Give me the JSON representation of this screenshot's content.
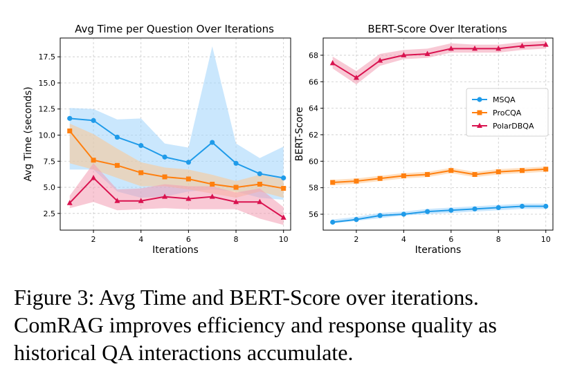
{
  "chart_data": [
    {
      "type": "line",
      "title": "Avg Time per Question Over Iterations",
      "xlabel": "Iterations",
      "ylabel": "Avg Time (seconds)",
      "xlim": [
        0.6,
        10.3
      ],
      "ylim": [
        0.9,
        19.3
      ],
      "xticks": [
        2,
        4,
        6,
        8,
        10
      ],
      "yticks": [
        2.5,
        5.0,
        7.5,
        10.0,
        12.5,
        15.0,
        17.5
      ],
      "x": [
        1,
        2,
        3,
        4,
        5,
        6,
        7,
        8,
        9,
        10
      ],
      "grid": true,
      "series": [
        {
          "name": "MSQA",
          "color": "#1f9be9",
          "band_color": "#9fd3fb",
          "marker": "circle",
          "values": [
            11.6,
            11.4,
            9.8,
            9.0,
            7.9,
            7.4,
            9.3,
            7.3,
            6.3,
            5.9
          ],
          "lower": [
            6.7,
            6.7,
            4.6,
            4.0,
            4.1,
            4.6,
            4.8,
            4.6,
            4.0,
            3.8
          ],
          "upper": [
            12.6,
            12.5,
            11.5,
            11.6,
            9.2,
            8.8,
            18.5,
            9.2,
            7.8,
            8.9
          ]
        },
        {
          "name": "ProCQA",
          "color": "#ff7f0e",
          "band_color": "#fdc690",
          "marker": "square",
          "values": [
            10.4,
            7.6,
            7.1,
            6.4,
            6.0,
            5.8,
            5.3,
            5.0,
            5.3,
            4.9
          ],
          "lower": [
            7.3,
            6.7,
            5.9,
            5.1,
            5.1,
            4.8,
            4.4,
            4.0,
            4.6,
            4.0
          ],
          "upper": [
            11.1,
            10.1,
            8.7,
            7.4,
            6.9,
            6.7,
            6.2,
            5.6,
            6.2,
            5.8
          ]
        },
        {
          "name": "PolarDBQA",
          "color": "#d9124f",
          "band_color": "#f29db3",
          "marker": "triangle",
          "values": [
            3.5,
            5.9,
            3.7,
            3.7,
            4.1,
            3.9,
            4.1,
            3.6,
            3.6,
            2.1
          ],
          "lower": [
            3.0,
            3.6,
            2.8,
            2.9,
            3.0,
            2.9,
            2.9,
            2.9,
            2.0,
            1.4
          ],
          "upper": [
            4.2,
            7.3,
            4.8,
            4.9,
            5.3,
            5.1,
            5.1,
            4.5,
            4.9,
            3.1
          ]
        }
      ]
    },
    {
      "type": "line",
      "title": "BERT-Score Over Iterations",
      "xlabel": "Iterations",
      "ylabel": "BERT-Score",
      "xlim": [
        0.6,
        10.3
      ],
      "ylim": [
        54.8,
        69.3
      ],
      "xticks": [
        2,
        4,
        6,
        8,
        10
      ],
      "yticks": [
        56,
        58,
        60,
        62,
        64,
        66,
        68
      ],
      "x": [
        1,
        2,
        3,
        4,
        5,
        6,
        7,
        8,
        9,
        10
      ],
      "grid": true,
      "legend_position": "right",
      "series": [
        {
          "name": "MSQA",
          "color": "#1f9be9",
          "band_color": "#9fd3fb",
          "marker": "circle",
          "values": [
            55.4,
            55.6,
            55.9,
            56.0,
            56.2,
            56.3,
            56.4,
            56.5,
            56.6,
            56.6
          ],
          "lower": [
            55.3,
            55.5,
            55.7,
            55.9,
            56.0,
            56.1,
            56.2,
            56.3,
            56.4,
            56.4
          ],
          "upper": [
            55.6,
            55.8,
            56.1,
            56.2,
            56.4,
            56.5,
            56.6,
            56.7,
            56.8,
            56.8
          ]
        },
        {
          "name": "ProCQA",
          "color": "#ff7f0e",
          "band_color": "#fdc690",
          "marker": "square",
          "values": [
            58.4,
            58.5,
            58.7,
            58.9,
            59.0,
            59.3,
            59.0,
            59.2,
            59.3,
            59.4
          ],
          "lower": [
            58.2,
            58.3,
            58.5,
            58.7,
            58.8,
            59.1,
            58.8,
            59.0,
            59.1,
            59.2
          ],
          "upper": [
            58.6,
            58.7,
            58.9,
            59.1,
            59.2,
            59.5,
            59.2,
            59.4,
            59.5,
            59.6
          ]
        },
        {
          "name": "PolarDBQA",
          "color": "#d9124f",
          "band_color": "#f29db3",
          "marker": "triangle",
          "values": [
            67.4,
            66.3,
            67.6,
            68.0,
            68.1,
            68.5,
            68.5,
            68.5,
            68.7,
            68.8
          ],
          "lower": [
            67.0,
            65.8,
            67.2,
            67.7,
            67.8,
            68.2,
            68.2,
            68.2,
            68.4,
            68.5
          ],
          "upper": [
            67.9,
            66.8,
            68.1,
            68.4,
            68.5,
            68.9,
            68.8,
            68.8,
            69.0,
            69.1
          ]
        }
      ]
    }
  ],
  "caption": {
    "line1": "Figure 3: Avg Time and BERT-Score over iterations.",
    "line2": "ComRAG improves efficiency and response quality as",
    "line3": "historical QA interactions accumulate."
  }
}
